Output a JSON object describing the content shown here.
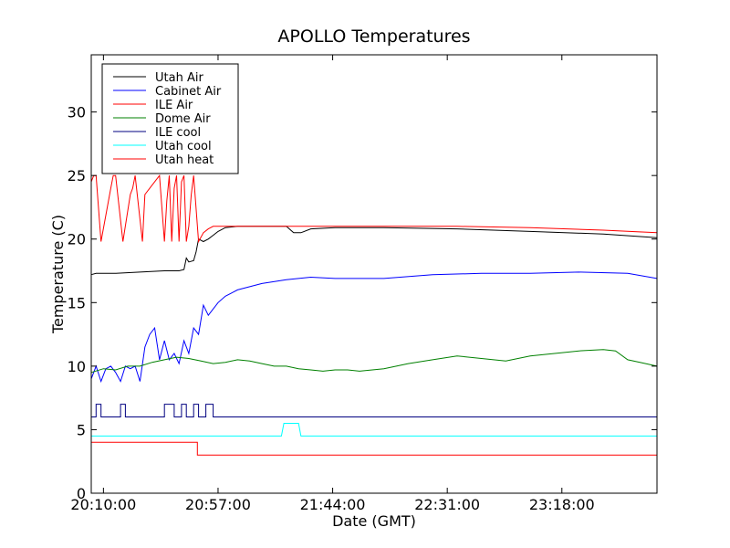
{
  "chart_data": {
    "type": "line",
    "title": "APOLLO Temperatures",
    "xlabel": "Date (GMT)",
    "ylabel": "Temperature (C)",
    "x_unit": "minutes since 20:05:00",
    "xlim": [
      0,
      232
    ],
    "ylim": [
      0,
      34.5
    ],
    "grid": false,
    "legend_position": "top-left",
    "x_ticks": [
      {
        "value": 5,
        "label": "20:10:00"
      },
      {
        "value": 52,
        "label": "20:57:00"
      },
      {
        "value": 99,
        "label": "21:44:00"
      },
      {
        "value": 146,
        "label": "22:31:00"
      },
      {
        "value": 193,
        "label": "23:18:00"
      }
    ],
    "y_ticks": [
      {
        "value": 0,
        "label": "0"
      },
      {
        "value": 5,
        "label": "5"
      },
      {
        "value": 10,
        "label": "10"
      },
      {
        "value": 15,
        "label": "15"
      },
      {
        "value": 20,
        "label": "20"
      },
      {
        "value": 25,
        "label": "25"
      },
      {
        "value": 30,
        "label": "30"
      }
    ],
    "series": [
      {
        "name": "Utah Air",
        "color": "#000000",
        "x": [
          0,
          2,
          10,
          20,
          30,
          36,
          38,
          39,
          40,
          42,
          43,
          44,
          46,
          48,
          50,
          52,
          55,
          60,
          70,
          80,
          83,
          86,
          90,
          100,
          120,
          150,
          180,
          210,
          232
        ],
        "y": [
          17.2,
          17.3,
          17.3,
          17.4,
          17.5,
          17.5,
          17.6,
          18.5,
          18.2,
          18.3,
          19.0,
          20.0,
          19.8,
          20.0,
          20.3,
          20.6,
          20.9,
          21.0,
          21.0,
          21.0,
          20.5,
          20.5,
          20.8,
          20.9,
          20.9,
          20.8,
          20.6,
          20.4,
          20.1
        ]
      },
      {
        "name": "Cabinet Air",
        "color": "#0000ff",
        "x": [
          0,
          2,
          4,
          6,
          8,
          10,
          12,
          14,
          16,
          18,
          20,
          22,
          24,
          26,
          28,
          30,
          32,
          34,
          36,
          38,
          40,
          42,
          44,
          46,
          48,
          50,
          52,
          55,
          60,
          70,
          80,
          90,
          100,
          120,
          140,
          160,
          180,
          200,
          220,
          232
        ],
        "y": [
          9.0,
          10.0,
          8.8,
          9.8,
          10.0,
          9.5,
          8.8,
          10.0,
          9.8,
          10.0,
          8.8,
          11.5,
          12.5,
          13.0,
          10.5,
          12.0,
          10.5,
          11.0,
          10.2,
          12.0,
          11.0,
          13.0,
          12.5,
          14.8,
          14.0,
          14.5,
          15.0,
          15.5,
          16.0,
          16.5,
          16.8,
          17.0,
          16.9,
          16.9,
          17.2,
          17.3,
          17.3,
          17.4,
          17.3,
          16.9
        ]
      },
      {
        "name": "ILE Air",
        "color": "#ff0000",
        "x": [
          0,
          1,
          2,
          4,
          8,
          9,
          10,
          13,
          16,
          17,
          18,
          21,
          22,
          24,
          26,
          28,
          30,
          31,
          32,
          33,
          34,
          35,
          36,
          37,
          38,
          39,
          40,
          41,
          42,
          44,
          46,
          48,
          50,
          52,
          55,
          60,
          80,
          100,
          120,
          150,
          180,
          210,
          232
        ],
        "y": [
          24.5,
          25.0,
          25.0,
          19.8,
          24.0,
          25.0,
          25.0,
          19.8,
          23.5,
          24.0,
          25.0,
          19.8,
          23.5,
          24.0,
          24.5,
          25.0,
          19.8,
          23.0,
          25.0,
          19.8,
          24.0,
          25.0,
          19.8,
          24.5,
          25.0,
          19.8,
          21.0,
          23.5,
          25.0,
          19.8,
          20.5,
          20.8,
          21.0,
          21.0,
          21.0,
          21.0,
          21.0,
          21.0,
          21.0,
          21.0,
          20.9,
          20.7,
          20.5
        ]
      },
      {
        "name": "Dome Air",
        "color": "#008000",
        "x": [
          0,
          5,
          10,
          15,
          20,
          25,
          30,
          35,
          40,
          45,
          50,
          55,
          60,
          65,
          70,
          75,
          80,
          85,
          90,
          95,
          100,
          105,
          110,
          120,
          130,
          140,
          150,
          160,
          170,
          180,
          190,
          200,
          210,
          215,
          220,
          225,
          232
        ],
        "y": [
          9.5,
          9.8,
          9.7,
          10.0,
          10.0,
          10.3,
          10.5,
          10.7,
          10.6,
          10.4,
          10.2,
          10.3,
          10.5,
          10.4,
          10.2,
          10.0,
          10.0,
          9.8,
          9.7,
          9.6,
          9.7,
          9.7,
          9.6,
          9.8,
          10.2,
          10.5,
          10.8,
          10.6,
          10.4,
          10.8,
          11.0,
          11.2,
          11.3,
          11.2,
          10.5,
          10.3,
          10.0
        ]
      },
      {
        "name": "ILE cool",
        "color": "#000080",
        "x": [
          0,
          2,
          2,
          4,
          4,
          12,
          12,
          14,
          14,
          30,
          30,
          34,
          34,
          37,
          37,
          39,
          39,
          42,
          42,
          44,
          44,
          47,
          47,
          50,
          50,
          232
        ],
        "y": [
          6.0,
          6.0,
          7.0,
          7.0,
          6.0,
          6.0,
          7.0,
          7.0,
          6.0,
          6.0,
          7.0,
          7.0,
          6.0,
          6.0,
          7.0,
          7.0,
          6.0,
          6.0,
          7.0,
          7.0,
          6.0,
          6.0,
          7.0,
          7.0,
          6.0,
          6.0
        ]
      },
      {
        "name": "Utah cool",
        "color": "#00ffff",
        "x": [
          0,
          78,
          79,
          85,
          86,
          232
        ],
        "y": [
          4.5,
          4.5,
          5.5,
          5.5,
          4.5,
          4.5
        ]
      },
      {
        "name": "Utah heat",
        "color": "#ff0000",
        "x": [
          0,
          0,
          43.5,
          43.5,
          232
        ],
        "y": [
          2.0,
          4.0,
          4.0,
          3.0,
          3.0
        ]
      }
    ]
  }
}
